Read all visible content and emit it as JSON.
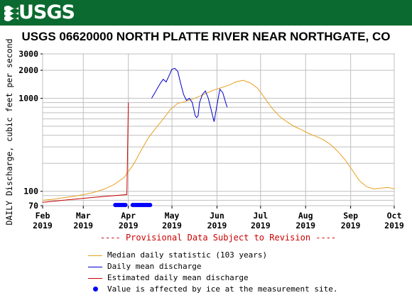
{
  "header": {
    "logo_text": "USGS"
  },
  "chart_data": {
    "type": "line",
    "title": "USGS 06620000 NORTH PLATTE RIVER NEAR NORTHGATE, CO",
    "ylabel": "DAILY Discharge, cubic feet per second",
    "xlabel": "",
    "yscale": "log",
    "ylim": [
      70,
      3000
    ],
    "xlim": [
      "2019-02-01",
      "2019-10-01"
    ],
    "y_ticks": [
      70,
      100,
      1000,
      2000,
      3000
    ],
    "x_ticks": [
      {
        "label": "Feb",
        "year": "2019",
        "date": "2019-02-01"
      },
      {
        "label": "Mar",
        "year": "2019",
        "date": "2019-03-01"
      },
      {
        "label": "Apr",
        "year": "2019",
        "date": "2019-04-01"
      },
      {
        "label": "May",
        "year": "2019",
        "date": "2019-05-01"
      },
      {
        "label": "Jun",
        "year": "2019",
        "date": "2019-06-01"
      },
      {
        "label": "Jul",
        "year": "2019",
        "date": "2019-07-01"
      },
      {
        "label": "Aug",
        "year": "2019",
        "date": "2019-08-01"
      },
      {
        "label": "Sep",
        "year": "2019",
        "date": "2019-09-01"
      },
      {
        "label": "Oct",
        "year": "2019",
        "date": "2019-10-01"
      }
    ],
    "grid": true,
    "annotation": "---- Provisional Data Subject to Revision ----",
    "series": [
      {
        "name": "Median daily statistic (103 years)",
        "color": "#e8a020",
        "points": [
          [
            "2019-02-01",
            80
          ],
          [
            "2019-02-08",
            82
          ],
          [
            "2019-02-15",
            85
          ],
          [
            "2019-02-22",
            88
          ],
          [
            "2019-03-01",
            92
          ],
          [
            "2019-03-08",
            97
          ],
          [
            "2019-03-15",
            105
          ],
          [
            "2019-03-22",
            118
          ],
          [
            "2019-03-29",
            140
          ],
          [
            "2019-04-05",
            200
          ],
          [
            "2019-04-10",
            280
          ],
          [
            "2019-04-15",
            380
          ],
          [
            "2019-04-20",
            480
          ],
          [
            "2019-04-25",
            600
          ],
          [
            "2019-04-30",
            760
          ],
          [
            "2019-05-05",
            880
          ],
          [
            "2019-05-10",
            920
          ],
          [
            "2019-05-15",
            980
          ],
          [
            "2019-05-20",
            1050
          ],
          [
            "2019-05-25",
            1140
          ],
          [
            "2019-05-30",
            1230
          ],
          [
            "2019-06-04",
            1300
          ],
          [
            "2019-06-09",
            1380
          ],
          [
            "2019-06-14",
            1500
          ],
          [
            "2019-06-19",
            1560
          ],
          [
            "2019-06-24",
            1460
          ],
          [
            "2019-06-29",
            1280
          ],
          [
            "2019-07-04",
            1000
          ],
          [
            "2019-07-09",
            780
          ],
          [
            "2019-07-14",
            640
          ],
          [
            "2019-07-19",
            560
          ],
          [
            "2019-07-24",
            500
          ],
          [
            "2019-07-29",
            460
          ],
          [
            "2019-08-03",
            420
          ],
          [
            "2019-08-08",
            390
          ],
          [
            "2019-08-13",
            360
          ],
          [
            "2019-08-18",
            320
          ],
          [
            "2019-08-23",
            270
          ],
          [
            "2019-08-28",
            220
          ],
          [
            "2019-09-02",
            170
          ],
          [
            "2019-09-07",
            130
          ],
          [
            "2019-09-12",
            112
          ],
          [
            "2019-09-17",
            106
          ],
          [
            "2019-09-22",
            108
          ],
          [
            "2019-09-27",
            110
          ],
          [
            "2019-10-01",
            106
          ]
        ]
      },
      {
        "name": "Daily mean discharge",
        "color": "#0000cc",
        "points": [
          [
            "2019-04-17",
            1000
          ],
          [
            "2019-04-20",
            1200
          ],
          [
            "2019-04-23",
            1450
          ],
          [
            "2019-04-25",
            1600
          ],
          [
            "2019-04-27",
            1500
          ],
          [
            "2019-04-29",
            1750
          ],
          [
            "2019-05-01",
            2050
          ],
          [
            "2019-05-03",
            2100
          ],
          [
            "2019-05-05",
            1950
          ],
          [
            "2019-05-07",
            1450
          ],
          [
            "2019-05-09",
            1100
          ],
          [
            "2019-05-11",
            950
          ],
          [
            "2019-05-13",
            1000
          ],
          [
            "2019-05-15",
            900
          ],
          [
            "2019-05-17",
            650
          ],
          [
            "2019-05-18",
            620
          ],
          [
            "2019-05-19",
            650
          ],
          [
            "2019-05-20",
            900
          ],
          [
            "2019-05-22",
            1100
          ],
          [
            "2019-05-24",
            1200
          ],
          [
            "2019-05-26",
            1000
          ],
          [
            "2019-05-28",
            750
          ],
          [
            "2019-05-30",
            560
          ],
          [
            "2019-06-01",
            850
          ],
          [
            "2019-06-03",
            1250
          ],
          [
            "2019-06-05",
            1150
          ],
          [
            "2019-06-07",
            900
          ],
          [
            "2019-06-08",
            800
          ]
        ]
      },
      {
        "name": "Estimated daily mean discharge",
        "color": "#cc0000",
        "points": [
          [
            "2019-02-01",
            76
          ],
          [
            "2019-02-15",
            80
          ],
          [
            "2019-03-01",
            84
          ],
          [
            "2019-03-15",
            88
          ],
          [
            "2019-03-31",
            92
          ],
          [
            "2019-04-01",
            900
          ]
        ]
      }
    ],
    "ice_affected": {
      "name": "Value is affected by ice at the measurement site.",
      "color": "#0000ff",
      "dates": [
        "2019-03-23",
        "2019-03-24",
        "2019-03-25",
        "2019-03-26",
        "2019-03-27",
        "2019-03-28",
        "2019-03-29",
        "2019-03-30",
        "2019-04-04",
        "2019-04-05",
        "2019-04-06",
        "2019-04-07",
        "2019-04-08",
        "2019-04-09",
        "2019-04-10",
        "2019-04-11",
        "2019-04-12",
        "2019-04-13",
        "2019-04-14",
        "2019-04-15",
        "2019-04-16"
      ]
    }
  }
}
